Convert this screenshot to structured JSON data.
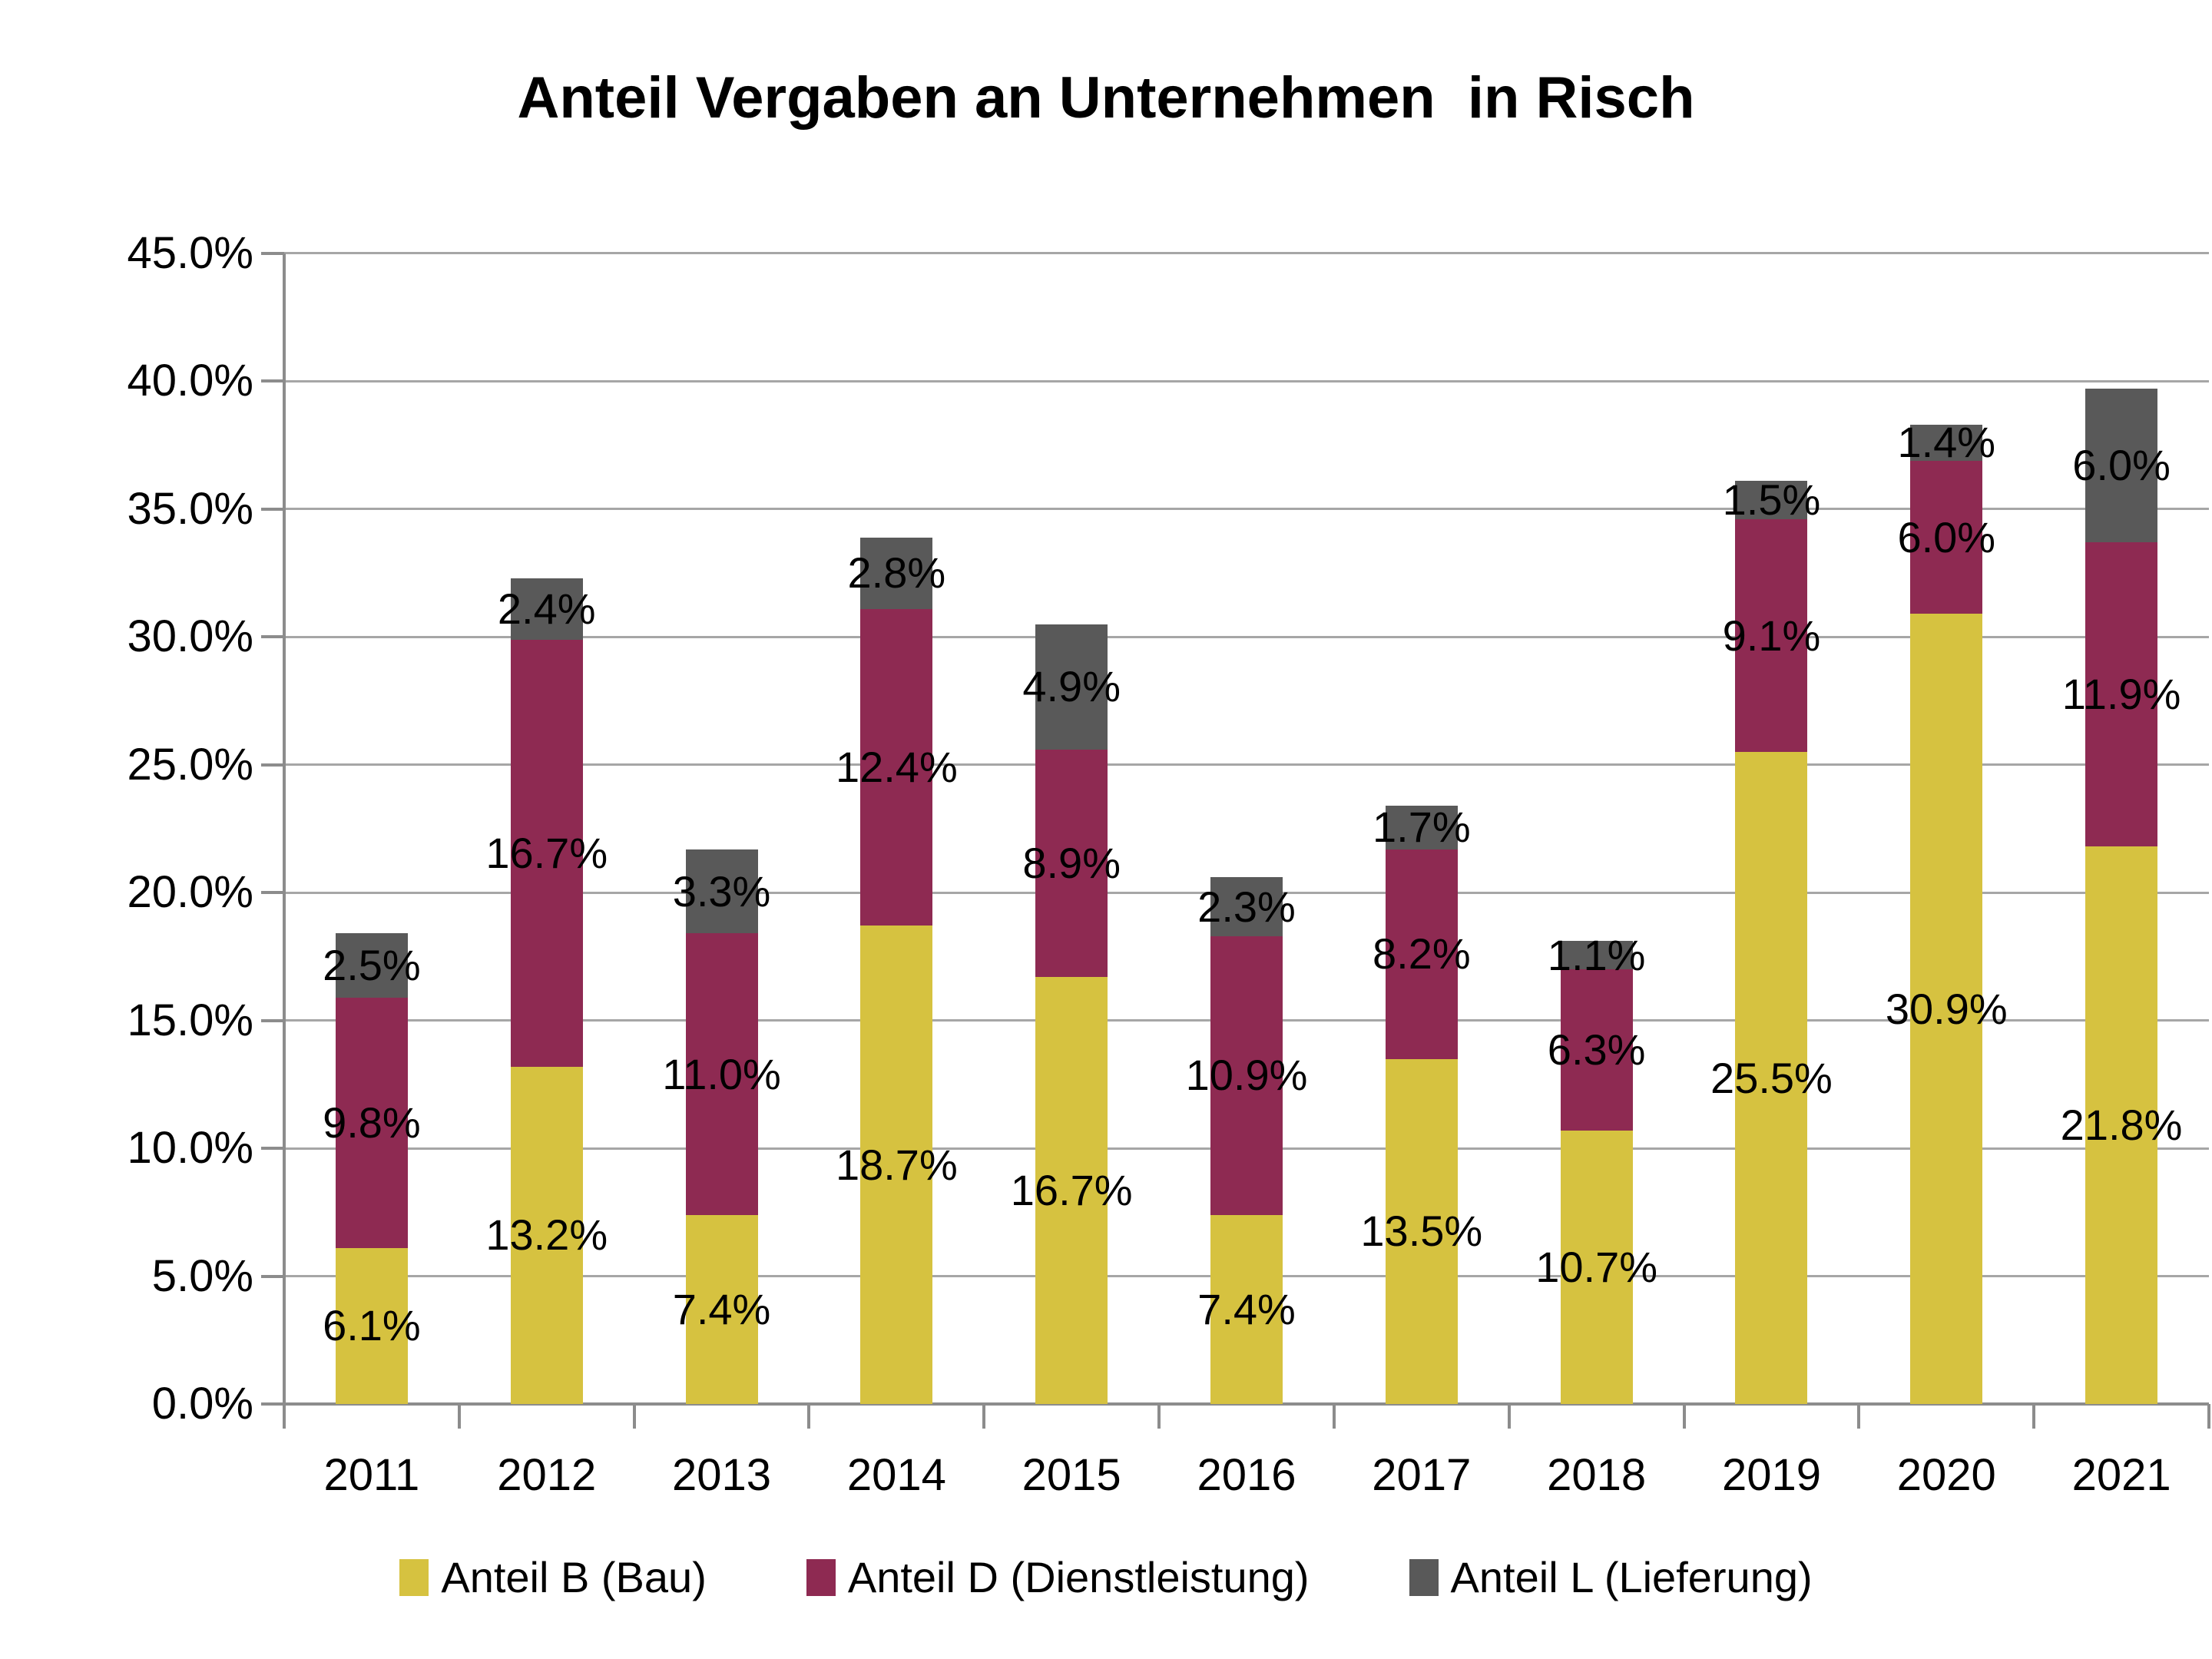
{
  "chart_data": {
    "type": "bar",
    "stacked": true,
    "title": "Anteil Vergaben an Unternehmen  in Risch",
    "categories": [
      "2011",
      "2012",
      "2013",
      "2014",
      "2015",
      "2016",
      "2017",
      "2018",
      "2019",
      "2020",
      "2021"
    ],
    "series": [
      {
        "key": "bau",
        "name": "Anteil B (Bau)",
        "color": "#D6C240",
        "values": [
          6.1,
          13.2,
          7.4,
          18.7,
          16.7,
          7.4,
          13.5,
          10.7,
          25.5,
          30.9,
          21.8
        ]
      },
      {
        "key": "dienstleistung",
        "name": "Anteil D (Dienstleistung)",
        "color": "#8E2A52",
        "values": [
          9.8,
          16.7,
          11.0,
          12.4,
          8.9,
          10.9,
          8.2,
          6.3,
          9.1,
          6.0,
          11.9
        ]
      },
      {
        "key": "lieferung",
        "name": "Anteil L (Lieferung)",
        "color": "#595959",
        "values": [
          2.5,
          2.4,
          3.3,
          2.8,
          4.9,
          2.3,
          1.7,
          1.1,
          1.5,
          1.4,
          6.0
        ]
      }
    ],
    "y_axis": {
      "min": 0,
      "max": 45,
      "step": 5,
      "tick_labels": [
        "0.0%",
        "5.0%",
        "10.0%",
        "15.0%",
        "20.0%",
        "25.0%",
        "30.0%",
        "35.0%",
        "40.0%",
        "45.0%"
      ]
    },
    "data_label_suffix": "%",
    "grid": true,
    "legend_position": "bottom",
    "colors": {
      "grid": "#A6A6A6",
      "axis": "#8C8C8C",
      "text": "#000000",
      "background": "#FFFFFF"
    }
  }
}
